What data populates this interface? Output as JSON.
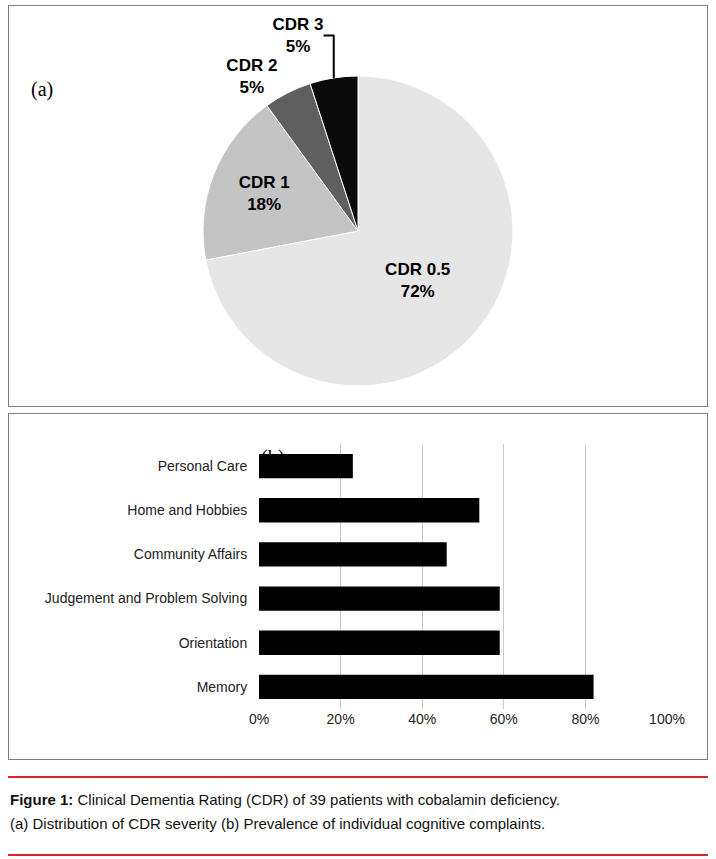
{
  "chart_data": [
    {
      "type": "pie",
      "annotations": [
        "(a)"
      ],
      "categories": [
        "CDR 0.5",
        "CDR 1",
        "CDR 2",
        "CDR 3"
      ],
      "values": [
        72,
        18,
        5,
        5
      ],
      "value_labels": [
        "72%",
        "18%",
        "5%",
        "5%"
      ],
      "data_labels": true,
      "colors": [
        "#e6e6e6",
        "#c4c4c4",
        "#5f5f5f",
        "#0a0a0a"
      ]
    },
    {
      "type": "bar",
      "orientation": "horizontal",
      "annotations": [
        "(b)"
      ],
      "categories": [
        "Personal Care",
        "Home and Hobbies",
        "Community Affairs",
        "Judgement and Problem Solving",
        "Orientation",
        "Memory"
      ],
      "values": [
        23,
        54,
        46,
        59,
        59,
        82
      ],
      "color": "#000000",
      "xlim": [
        0,
        100
      ],
      "xticks": [
        {
          "value": 0,
          "label": "0%"
        },
        {
          "value": 20,
          "label": "20%"
        },
        {
          "value": 40,
          "label": "40%"
        },
        {
          "value": 60,
          "label": "60%"
        },
        {
          "value": 80,
          "label": "80%"
        },
        {
          "value": 100,
          "label": "100%"
        }
      ],
      "grid": true
    }
  ],
  "figure": {
    "label": "Figure 1:",
    "caption": [
      "Clinical Dementia Rating (CDR) of 39 patients with cobalamin deficiency.",
      "(a) Distribution of CDR severity (b) Prevalence of individual cognitive complaints."
    ]
  }
}
